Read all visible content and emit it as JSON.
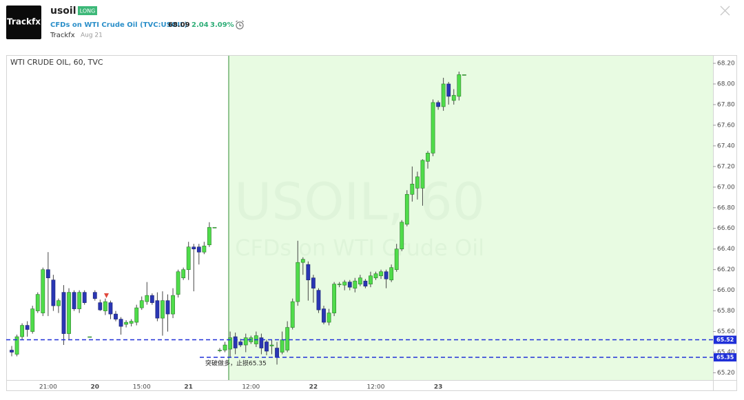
{
  "header": {
    "logo": "Trackfx",
    "symbol": "usoil",
    "badge": "LONG",
    "description": "CFDs on WTI Crude Oil (TVC:USOIL)",
    "price": "68.09",
    "change": "2.04",
    "change_percent": "3.09%",
    "author": "Trackfx",
    "date": "Aug 21"
  },
  "chart_data": {
    "type": "candlestick",
    "title": "WTI CRUDE OIL, 60, TVC",
    "watermark": {
      "symbol": "USOIL, 60",
      "description": "CFDs on WTI Crude Oil"
    },
    "categories": [
      null,
      null,
      null,
      null,
      null,
      null,
      null,
      "21:00",
      null,
      null,
      null,
      null,
      null,
      null,
      null,
      null,
      "20",
      null,
      null,
      null,
      null,
      null,
      null,
      null,
      null,
      "15:00",
      null,
      null,
      null,
      null,
      null,
      null,
      null,
      null,
      "21",
      null,
      null,
      null,
      null,
      null,
      null,
      null,
      null,
      null,
      null,
      null,
      "12:00",
      null,
      null,
      null,
      null,
      null,
      null,
      null,
      null,
      null,
      null,
      null,
      "22",
      null,
      null,
      null,
      null,
      null,
      null,
      null,
      null,
      null,
      null,
      null,
      "12:00",
      null,
      null,
      null,
      null,
      null,
      null,
      null,
      null,
      null,
      null,
      null,
      "23",
      null,
      null,
      null,
      null,
      null
    ],
    "open": [
      65.42,
      65.38,
      65.55,
      65.66,
      65.6,
      65.8,
      65.78,
      66.2,
      66.1,
      65.85,
      65.98,
      65.58,
      65.98,
      65.82,
      65.98,
      65.55,
      65.98,
      65.88,
      65.8,
      65.88,
      65.77,
      65.72,
      65.67,
      65.68,
      65.69,
      65.83,
      65.89,
      65.95,
      65.9,
      65.73,
      65.9,
      65.77,
      65.96,
      66.12,
      66.2,
      66.42,
      66.42,
      66.37,
      66.44,
      66.61,
      65.42,
      65.42,
      65.43,
      65.55,
      65.5,
      65.47,
      65.5,
      65.48,
      65.54,
      65.5,
      65.46,
      65.44,
      65.4,
      65.42,
      65.64,
      65.89,
      66.27,
      66.25,
      66.12,
      66.0,
      65.82,
      65.69,
      65.78,
      66.06,
      66.05,
      66.08,
      66.02,
      66.06,
      66.09,
      66.06,
      66.12,
      66.14,
      66.18,
      66.1,
      66.2,
      66.4,
      66.64,
      66.93,
      66.99,
      66.99,
      67.25,
      67.33,
      67.82,
      67.78,
      68.0,
      67.84,
      67.88,
      68.09
    ],
    "high": [
      65.46,
      65.57,
      65.68,
      65.7,
      65.85,
      65.98,
      66.22,
      66.37,
      66.15,
      65.92,
      66.05,
      66.02,
      66.0,
      66.0,
      66.0,
      65.55,
      66.0,
      65.91,
      65.92,
      65.9,
      65.8,
      65.74,
      65.71,
      65.72,
      65.86,
      65.94,
      66.08,
      65.97,
      65.98,
      65.99,
      65.96,
      66.02,
      66.2,
      66.22,
      66.47,
      66.45,
      66.45,
      66.47,
      66.66,
      66.61,
      65.44,
      65.5,
      65.6,
      65.59,
      65.53,
      65.58,
      65.56,
      65.6,
      65.58,
      65.52,
      65.52,
      65.5,
      65.6,
      65.7,
      65.92,
      66.48,
      66.32,
      66.28,
      66.15,
      66.02,
      65.85,
      65.82,
      66.08,
      66.08,
      66.1,
      66.1,
      66.12,
      66.15,
      66.11,
      66.18,
      66.18,
      66.2,
      66.2,
      66.25,
      66.45,
      66.68,
      66.97,
      67.2,
      67.15,
      67.27,
      67.35,
      67.85,
      67.84,
      68.06,
      68.02,
      67.95,
      68.12,
      68.09
    ],
    "low": [
      65.36,
      65.36,
      65.52,
      65.55,
      65.58,
      65.78,
      65.75,
      65.75,
      65.8,
      65.78,
      65.47,
      65.52,
      65.8,
      65.78,
      65.86,
      65.55,
      65.9,
      65.8,
      65.76,
      65.72,
      65.7,
      65.57,
      65.64,
      65.65,
      65.66,
      65.81,
      65.86,
      65.86,
      65.7,
      65.56,
      65.6,
      65.73,
      65.93,
      66.1,
      66.1,
      65.99,
      66.25,
      66.35,
      66.42,
      66.61,
      65.4,
      65.4,
      65.35,
      65.38,
      65.45,
      65.4,
      65.48,
      65.45,
      65.38,
      65.37,
      65.38,
      65.28,
      65.38,
      65.4,
      65.62,
      65.85,
      66.15,
      65.9,
      65.88,
      65.78,
      65.67,
      65.66,
      65.75,
      66.03,
      66.0,
      66.0,
      65.98,
      66.04,
      66.02,
      66.03,
      66.1,
      66.11,
      66.02,
      66.08,
      66.18,
      66.38,
      66.62,
      66.86,
      66.88,
      66.82,
      67.18,
      67.3,
      67.75,
      67.74,
      67.8,
      67.8,
      67.84,
      68.09
    ],
    "close": [
      65.4,
      65.55,
      65.66,
      65.62,
      65.82,
      65.96,
      66.2,
      66.12,
      65.85,
      65.9,
      65.58,
      65.98,
      65.82,
      65.98,
      65.88,
      65.55,
      65.92,
      65.81,
      65.89,
      65.77,
      65.72,
      65.65,
      65.69,
      65.7,
      65.83,
      65.9,
      65.95,
      65.88,
      65.73,
      65.9,
      65.77,
      65.95,
      66.18,
      66.2,
      66.42,
      66.4,
      66.37,
      66.43,
      66.61,
      66.61,
      65.42,
      65.47,
      65.54,
      65.44,
      65.47,
      65.54,
      65.54,
      65.56,
      65.44,
      65.41,
      65.47,
      65.35,
      65.52,
      65.64,
      65.89,
      66.27,
      66.3,
      66.1,
      66.02,
      65.81,
      65.69,
      65.78,
      66.06,
      66.06,
      66.08,
      66.03,
      66.09,
      66.12,
      66.04,
      66.14,
      66.16,
      66.18,
      66.11,
      66.22,
      66.4,
      66.66,
      66.93,
      67.03,
      67.1,
      67.26,
      67.33,
      67.82,
      67.78,
      68.0,
      67.88,
      67.89,
      68.09,
      68.09
    ],
    "up_color": "#4fdc4a",
    "down_color": "#2a36b4",
    "wick_color": "#444444",
    "shade_color": "#e8fbe2",
    "ylim": [
      65.13,
      68.28
    ],
    "yticks": [
      {
        "value": 65.2,
        "label": "65.20"
      },
      {
        "value": 65.4,
        "label": "65.40"
      },
      {
        "value": 65.6,
        "label": "65.60"
      },
      {
        "value": 65.8,
        "label": "65.80"
      },
      {
        "value": 66.0,
        "label": "66.00"
      },
      {
        "value": 66.2,
        "label": "66.20"
      },
      {
        "value": 66.4,
        "label": "66.40"
      },
      {
        "value": 66.6,
        "label": "66.60"
      },
      {
        "value": 66.8,
        "label": "66.80"
      },
      {
        "value": 67.0,
        "label": "67.00"
      },
      {
        "value": 67.2,
        "label": "67.20"
      },
      {
        "value": 67.4,
        "label": "67.40"
      },
      {
        "value": 67.6,
        "label": "67.60"
      },
      {
        "value": 67.8,
        "label": "67.80"
      },
      {
        "value": 68.0,
        "label": "68.00"
      },
      {
        "value": 68.2,
        "label": "68.20"
      }
    ],
    "grid": false,
    "hlines": [
      {
        "value": 65.52,
        "color": "#1f2fd8"
      },
      {
        "value": 65.35,
        "color": "#1f2fd8"
      }
    ],
    "annotation": "突破做多，止损65.35"
  }
}
